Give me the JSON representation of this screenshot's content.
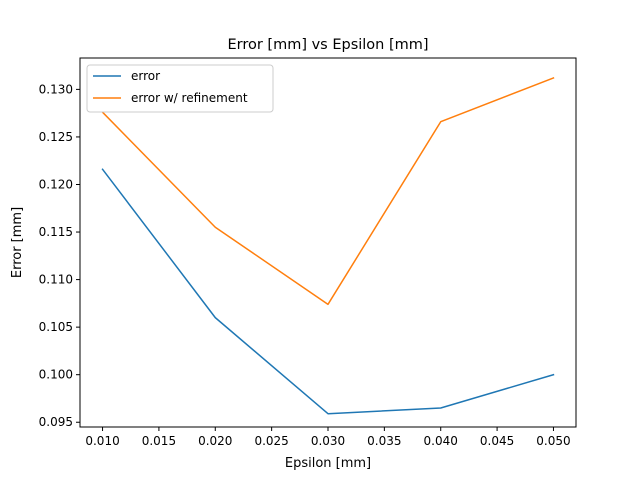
{
  "chart_data": {
    "type": "line",
    "title": "Error [mm] vs Epsilon [mm]",
    "xlabel": "Epsilon [mm]",
    "ylabel": "Error [mm]",
    "x": [
      0.01,
      0.02,
      0.03,
      0.04,
      0.05
    ],
    "series": [
      {
        "name": "error",
        "color": "#1f77b4",
        "values": [
          0.1216,
          0.106,
          0.0959,
          0.0965,
          0.1
        ]
      },
      {
        "name": "error w/ refinement",
        "color": "#ff7f0e",
        "values": [
          0.1276,
          0.1155,
          0.1074,
          0.1266,
          0.1312
        ]
      }
    ],
    "xlim": [
      0.008,
      0.052
    ],
    "ylim": [
      0.0945,
      0.1333
    ],
    "xticks": [
      0.01,
      0.015,
      0.02,
      0.025,
      0.03,
      0.035,
      0.04,
      0.045,
      0.05
    ],
    "xtick_labels": [
      "0.010",
      "0.015",
      "0.020",
      "0.025",
      "0.030",
      "0.035",
      "0.040",
      "0.045",
      "0.050"
    ],
    "yticks": [
      0.095,
      0.1,
      0.105,
      0.11,
      0.115,
      0.12,
      0.125,
      0.13
    ],
    "ytick_labels": [
      "0.095",
      "0.100",
      "0.105",
      "0.110",
      "0.115",
      "0.120",
      "0.125",
      "0.130"
    ],
    "grid": false,
    "legend_position": "top-left"
  }
}
